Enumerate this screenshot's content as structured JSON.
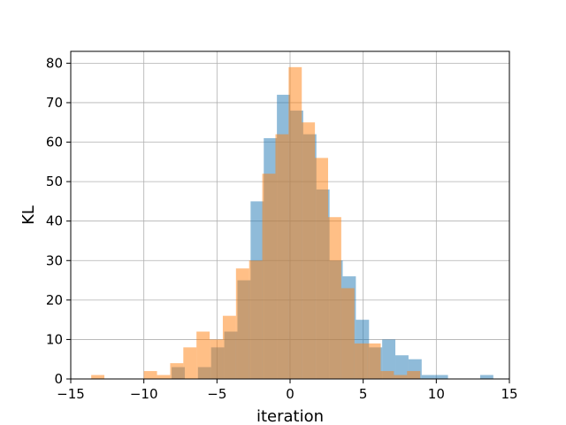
{
  "chart_data": {
    "type": "histogram",
    "title": "",
    "xlabel": "iteration",
    "ylabel": "KL",
    "xlim": [
      -15,
      15
    ],
    "ylim": [
      0,
      83
    ],
    "grid": true,
    "xticks": [
      -15,
      -10,
      -5,
      0,
      5,
      10,
      15
    ],
    "yticks": [
      0,
      10,
      20,
      30,
      40,
      50,
      60,
      70,
      80
    ],
    "series": [
      {
        "color": "#1f77b4",
        "alpha": 0.5,
        "bins": [
          {
            "x0": -8.1,
            "x1": -7.2,
            "count": 3
          },
          {
            "x0": -6.3,
            "x1": -5.4,
            "count": 3
          },
          {
            "x0": -5.4,
            "x1": -4.5,
            "count": 8
          },
          {
            "x0": -4.5,
            "x1": -3.6,
            "count": 12
          },
          {
            "x0": -3.6,
            "x1": -2.7,
            "count": 25
          },
          {
            "x0": -2.7,
            "x1": -1.8,
            "count": 45
          },
          {
            "x0": -1.8,
            "x1": -0.9,
            "count": 61
          },
          {
            "x0": -0.9,
            "x1": 0.0,
            "count": 72
          },
          {
            "x0": 0.0,
            "x1": 0.9,
            "count": 68
          },
          {
            "x0": 0.9,
            "x1": 1.8,
            "count": 62
          },
          {
            "x0": 1.8,
            "x1": 2.7,
            "count": 48
          },
          {
            "x0": 2.7,
            "x1": 3.6,
            "count": 30
          },
          {
            "x0": 3.6,
            "x1": 4.5,
            "count": 26
          },
          {
            "x0": 4.5,
            "x1": 5.4,
            "count": 15
          },
          {
            "x0": 5.4,
            "x1": 6.3,
            "count": 8
          },
          {
            "x0": 6.3,
            "x1": 7.2,
            "count": 10
          },
          {
            "x0": 7.2,
            "x1": 8.1,
            "count": 6
          },
          {
            "x0": 8.1,
            "x1": 9.0,
            "count": 5
          },
          {
            "x0": 9.0,
            "x1": 9.9,
            "count": 1
          },
          {
            "x0": 9.9,
            "x1": 10.8,
            "count": 1
          },
          {
            "x0": 13.0,
            "x1": 13.9,
            "count": 1
          }
        ]
      },
      {
        "color": "#ff7f0e",
        "alpha": 0.5,
        "bins": [
          {
            "x0": -13.6,
            "x1": -12.7,
            "count": 1
          },
          {
            "x0": -10.0,
            "x1": -9.1,
            "count": 2
          },
          {
            "x0": -9.1,
            "x1": -8.2,
            "count": 1
          },
          {
            "x0": -8.2,
            "x1": -7.3,
            "count": 4
          },
          {
            "x0": -7.3,
            "x1": -6.4,
            "count": 8
          },
          {
            "x0": -6.4,
            "x1": -5.5,
            "count": 12
          },
          {
            "x0": -5.5,
            "x1": -4.6,
            "count": 10
          },
          {
            "x0": -4.6,
            "x1": -3.7,
            "count": 16
          },
          {
            "x0": -3.7,
            "x1": -2.8,
            "count": 28
          },
          {
            "x0": -2.8,
            "x1": -1.9,
            "count": 30
          },
          {
            "x0": -1.9,
            "x1": -1.0,
            "count": 52
          },
          {
            "x0": -1.0,
            "x1": -0.1,
            "count": 62
          },
          {
            "x0": -0.1,
            "x1": 0.8,
            "count": 79
          },
          {
            "x0": 0.8,
            "x1": 1.7,
            "count": 65
          },
          {
            "x0": 1.7,
            "x1": 2.6,
            "count": 56
          },
          {
            "x0": 2.6,
            "x1": 3.5,
            "count": 41
          },
          {
            "x0": 3.5,
            "x1": 4.4,
            "count": 23
          },
          {
            "x0": 4.4,
            "x1": 5.3,
            "count": 9
          },
          {
            "x0": 5.3,
            "x1": 6.2,
            "count": 9
          },
          {
            "x0": 6.2,
            "x1": 7.1,
            "count": 2
          },
          {
            "x0": 7.1,
            "x1": 8.0,
            "count": 1
          },
          {
            "x0": 8.0,
            "x1": 8.9,
            "count": 2
          }
        ]
      }
    ]
  }
}
